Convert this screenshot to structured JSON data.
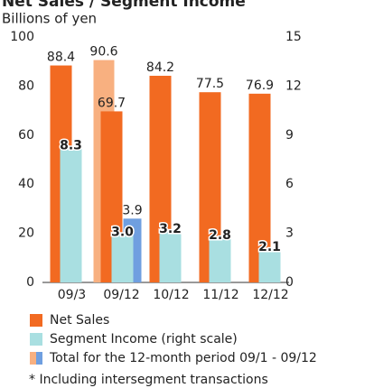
{
  "chart_data": {
    "type": "bar",
    "title": "Net Sales / Segment Income",
    "subtitle": "Billions of yen",
    "categories": [
      "09/3",
      "09/12",
      "10/12",
      "11/12",
      "12/12"
    ],
    "series": [
      {
        "name": "Net Sales",
        "color": "#f26a21",
        "label_color": "#f26a21",
        "values": [
          88.4,
          69.7,
          84.2,
          77.5,
          76.9
        ]
      },
      {
        "name": "Segment Income (right scale)",
        "color": "#a9dfe1",
        "label_color": "#2aa7d8",
        "axis": "y2",
        "values": [
          8.3,
          3.0,
          3.2,
          2.8,
          2.1
        ],
        "value_labels": [
          "8.3",
          "3.0",
          "3.2",
          "2.8",
          "2.1"
        ]
      },
      {
        "name": "Total for the 12-month period 09/1 - 09/12",
        "color": "#f8b080",
        "label_color": "#444444",
        "values": [
          null,
          90.6,
          null,
          null,
          null
        ]
      },
      {
        "color": "#6f9fe0",
        "label_color": "#444444",
        "axis": "y2",
        "values": [
          null,
          3.9,
          null,
          null,
          null
        ]
      }
    ],
    "ylim": [
      0,
      100
    ],
    "yticks": [
      0,
      20,
      40,
      60,
      80,
      100
    ],
    "y2lim": [
      0,
      15
    ],
    "y2ticks": [
      0,
      3,
      6,
      9,
      12,
      15
    ],
    "footnote": "* Including intersegment transactions"
  }
}
